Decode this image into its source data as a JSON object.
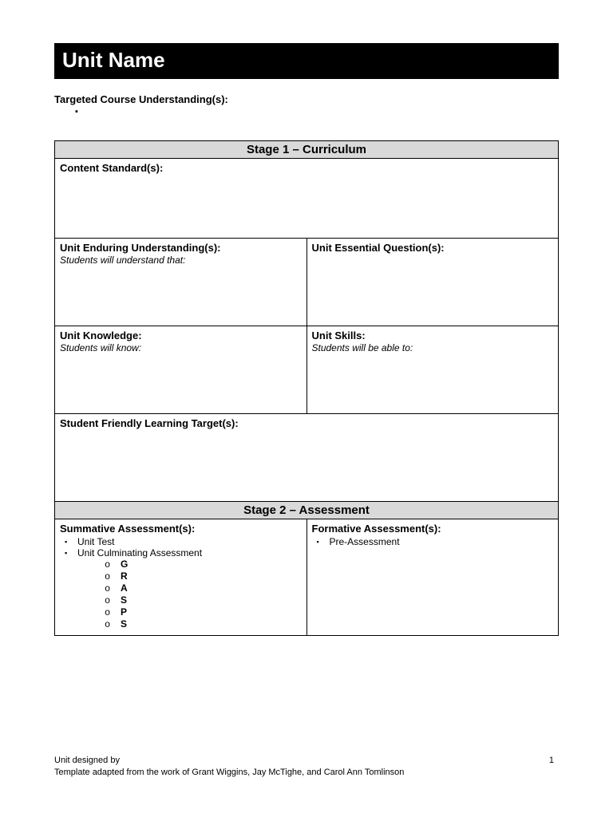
{
  "title": "Unit Name",
  "targeted_label": "Targeted Course Understanding(s):",
  "stage1": {
    "header": "Stage 1 – Curriculum",
    "content_standards": "Content Standard(s):",
    "enduring_label": "Unit Enduring Understanding(s):",
    "enduring_hint": "Students will understand that:",
    "essential_label": "Unit Essential Question(s):",
    "knowledge_label": "Unit Knowledge:",
    "knowledge_hint": "Students will know:",
    "skills_label": "Unit Skills:",
    "skills_hint": "Students will be able to:",
    "learning_targets": "Student Friendly Learning Target(s):"
  },
  "stage2": {
    "header": "Stage 2 – Assessment",
    "summative_label": "Summative Assessment(s):",
    "summative_items": {
      "i0": "Unit Test",
      "i1": "Unit Culminating Assessment"
    },
    "grasps": {
      "g": "G",
      "r": "R",
      "a": "A",
      "s1": "S",
      "p": "P",
      "s2": "S"
    },
    "formative_label": "Formative Assessment(s):",
    "formative_items": {
      "i0": "Pre-Assessment"
    }
  },
  "footer": {
    "line1": "Unit designed by",
    "line2": "Template adapted from the work of Grant Wiggins, Jay McTighe, and Carol Ann Tomlinson",
    "page": "1"
  }
}
